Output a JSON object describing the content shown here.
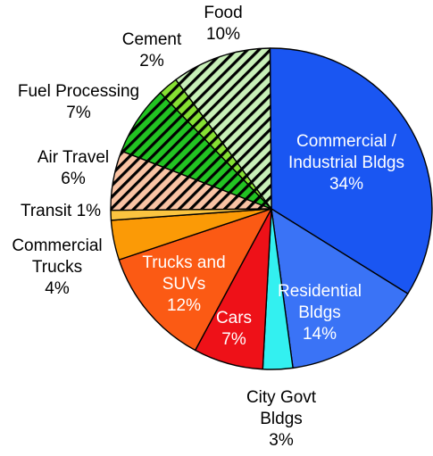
{
  "chart_data": {
    "type": "pie",
    "title": "",
    "slices": [
      {
        "label": "Commercial / Industrial Bldgs",
        "label_lines": [
          "Commercial /",
          "Industrial Bldgs"
        ],
        "percent_text": "34%",
        "value": 34,
        "color": "#1a56f2",
        "pattern": "",
        "text_color": "#ffffff"
      },
      {
        "label": "Residential Bldgs",
        "label_lines": [
          "Residential",
          "Bldgs"
        ],
        "percent_text": "14%",
        "value": 14,
        "color": "#3a73f6",
        "pattern": "",
        "text_color": "#ffffff"
      },
      {
        "label": "City Govt Bldgs",
        "label_lines": [
          "City Govt",
          "Bldgs"
        ],
        "percent_text": "3%",
        "value": 3,
        "color": "#33f0f0",
        "pattern": "",
        "text_color": "#000000"
      },
      {
        "label": "Cars",
        "label_lines": [
          "Cars"
        ],
        "percent_text": "7%",
        "value": 7,
        "color": "#ee1118",
        "pattern": "",
        "text_color": "#ffffff"
      },
      {
        "label": "Trucks and SUVs",
        "label_lines": [
          "Trucks and",
          "SUVs"
        ],
        "percent_text": "12%",
        "value": 12,
        "color": "#fb5a14",
        "pattern": "",
        "text_color": "#ffffff"
      },
      {
        "label": "Commercial Trucks",
        "label_lines": [
          "Commercial",
          "Trucks"
        ],
        "percent_text": "4%",
        "value": 4,
        "color": "#fb9a06",
        "pattern": "",
        "text_color": "#000000"
      },
      {
        "label": "Transit",
        "label_lines": [
          "Transit"
        ],
        "percent_text": "1%",
        "value": 1,
        "color": "#fbc440",
        "pattern": "",
        "text_color": "#000000"
      },
      {
        "label": "Air Travel",
        "label_lines": [
          "Air Travel"
        ],
        "percent_text": "6%",
        "value": 6,
        "color": "#f9c3a4",
        "pattern": "hatch-salmon",
        "text_color": "#000000"
      },
      {
        "label": "Fuel Processing",
        "label_lines": [
          "Fuel Processing"
        ],
        "percent_text": "7%",
        "value": 7,
        "color": "#22c322",
        "pattern": "hatch-green",
        "text_color": "#000000"
      },
      {
        "label": "Cement",
        "label_lines": [
          "Cement"
        ],
        "percent_text": "2%",
        "value": 2,
        "color": "#86e033",
        "pattern": "hatch-lime",
        "text_color": "#000000"
      },
      {
        "label": "Food",
        "label_lines": [
          "Food"
        ],
        "percent_text": "10%",
        "value": 10,
        "color": "#c8f0b8",
        "pattern": "hatch-pale",
        "text_color": "#000000"
      }
    ],
    "legend": "none"
  }
}
